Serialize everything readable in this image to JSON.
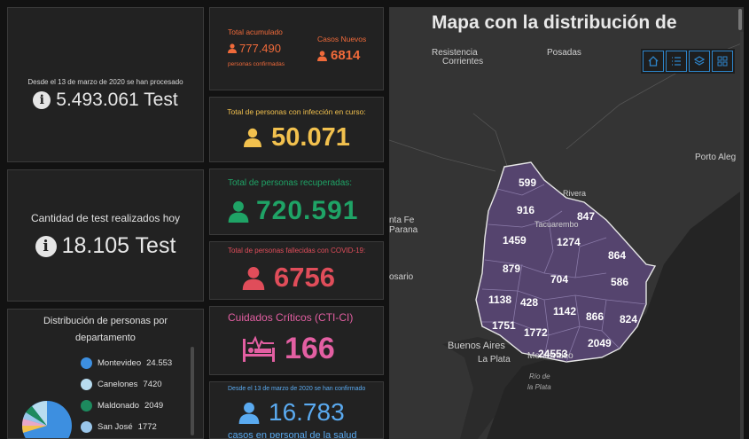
{
  "tests_total": {
    "caption": "Desde el 13 de marzo de 2020 se han procesado",
    "value": "5.493.061 Test"
  },
  "tests_today": {
    "caption": "Cantidad de test realizados hoy",
    "value": "18.105 Test"
  },
  "distribution": {
    "title": "Distribución de personas por departamento",
    "items": [
      {
        "name": "Montevideo",
        "value": "24.553",
        "color": "#3d8fe0"
      },
      {
        "name": "Canelones",
        "value": "7420",
        "color": "#b8dcf0"
      },
      {
        "name": "Maldonado",
        "value": "2049",
        "color": "#1d8a5e"
      },
      {
        "name": "San José",
        "value": "1772",
        "color": "#9ac6ea"
      }
    ]
  },
  "accumulated": {
    "label": "Total acumulado",
    "value": "777.490",
    "sub": "personas confirmadas",
    "color": "#f06a3a"
  },
  "new_cases": {
    "label": "Casos Nuevos",
    "value": "6814",
    "color": "#f06a3a"
  },
  "active": {
    "label": "Total de personas con infección en curso:",
    "value": "50.071",
    "color": "#f2c14e"
  },
  "recovered": {
    "label": "Total de personas recuperadas:",
    "value": "720.591",
    "color": "#1fa366"
  },
  "deceased": {
    "label": "Total de personas fallecidas con COVID-19:",
    "value": "6756",
    "color": "#e04d5a"
  },
  "critical": {
    "label": "Cuidados Críticos (CTI-CI)",
    "value": "166",
    "color": "#e35fa2"
  },
  "health_staff": {
    "label": "Desde el 13 de marzo de 2020 se han confirmado",
    "value": "16.783",
    "sub": "casos en personal de la salud",
    "color": "#5aaaf0"
  },
  "map": {
    "title": "Mapa con la distribución de",
    "cities": {
      "resistencia": "Resistencia",
      "corrientes": "Corrientes",
      "posadas": "Posadas",
      "porto_alegre": "Porto Aleg",
      "santa_fe": "nta Fe",
      "parana": "Parana",
      "rosario": "osario",
      "buenos_aires": "Buenos Aires",
      "la_plata": "La Plata",
      "montevideo": "Montevideo",
      "rio_plata_1": "Río de",
      "rio_plata_2": "la Plata",
      "rivera": "Rivera",
      "tacuarembo": "Tacuarembo"
    },
    "departments": [
      "599",
      "916",
      "847",
      "1459",
      "1274",
      "879",
      "864",
      "704",
      "586",
      "1138",
      "428",
      "1142",
      "866",
      "824",
      "1751",
      "1772",
      "2049",
      "24553"
    ]
  }
}
